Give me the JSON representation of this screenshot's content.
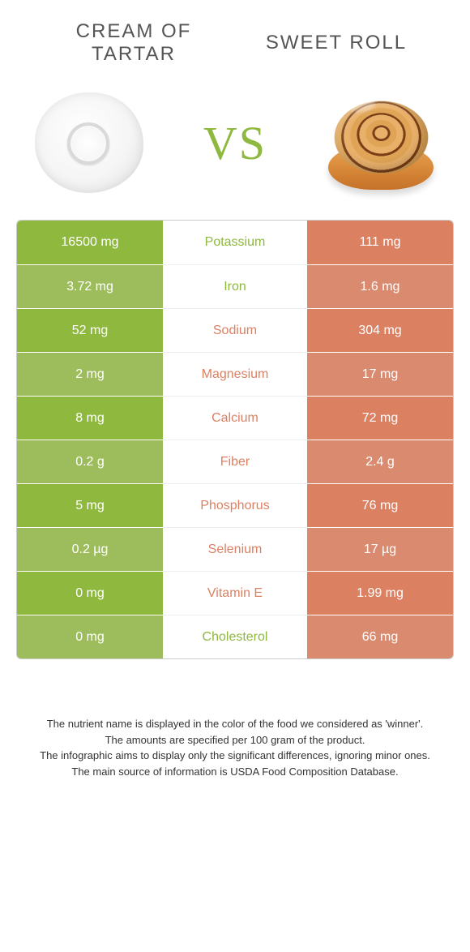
{
  "colors": {
    "green": "#8fb83f",
    "green_dim": "#9dbc5b",
    "orange": "#dc8062",
    "orange_dim": "#d98a6f",
    "text_dark": "#555555",
    "border": "#cccccc"
  },
  "header": {
    "left_title": "Cream of tartar",
    "right_title": "Sweet roll",
    "vs": "VS"
  },
  "rows": [
    {
      "nutrient": "Potassium",
      "left": "16500 mg",
      "right": "111 mg",
      "winner": "left"
    },
    {
      "nutrient": "Iron",
      "left": "3.72 mg",
      "right": "1.6 mg",
      "winner": "left"
    },
    {
      "nutrient": "Sodium",
      "left": "52 mg",
      "right": "304 mg",
      "winner": "right"
    },
    {
      "nutrient": "Magnesium",
      "left": "2 mg",
      "right": "17 mg",
      "winner": "right"
    },
    {
      "nutrient": "Calcium",
      "left": "8 mg",
      "right": "72 mg",
      "winner": "right"
    },
    {
      "nutrient": "Fiber",
      "left": "0.2 g",
      "right": "2.4 g",
      "winner": "right"
    },
    {
      "nutrient": "Phosphorus",
      "left": "5 mg",
      "right": "76 mg",
      "winner": "right"
    },
    {
      "nutrient": "Selenium",
      "left": "0.2 µg",
      "right": "17 µg",
      "winner": "right"
    },
    {
      "nutrient": "Vitamin E",
      "left": "0 mg",
      "right": "1.99 mg",
      "winner": "right"
    },
    {
      "nutrient": "Cholesterol",
      "left": "0 mg",
      "right": "66 mg",
      "winner": "left"
    }
  ],
  "footnotes": [
    "The nutrient name is displayed in the color of the food we considered as 'winner'.",
    "The amounts are specified per 100 gram of the product.",
    "The infographic aims to display only the significant differences, ignoring minor ones.",
    "The main source of information is USDA Food Composition Database."
  ]
}
